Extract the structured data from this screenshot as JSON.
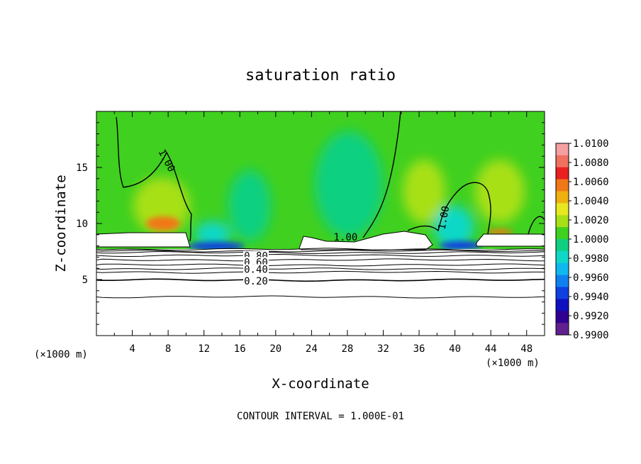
{
  "chart_data": {
    "type": "heatmap",
    "title": "saturation ratio",
    "xlabel": "X-coordinate",
    "ylabel": "Z-coordinate",
    "x_unit": "(×1000 m)",
    "y_unit": "(×1000 m)",
    "footer": "CONTOUR INTERVAL = 1.000E-01",
    "xlim": [
      0,
      50
    ],
    "ylim": [
      0,
      20
    ],
    "x_ticks": [
      4,
      8,
      12,
      16,
      20,
      24,
      28,
      32,
      36,
      40,
      44,
      48
    ],
    "y_ticks": [
      5,
      10,
      15
    ],
    "colorbar": {
      "labels": [
        "1.0100",
        "1.0080",
        "1.0060",
        "1.0040",
        "1.0020",
        "1.0000",
        "0.9980",
        "0.9960",
        "0.9940",
        "0.9920",
        "0.9900"
      ],
      "colors": [
        "#f4a0a0",
        "#f07060",
        "#e82020",
        "#f07818",
        "#f0b010",
        "#e8e820",
        "#a8e018",
        "#40d020",
        "#10d080",
        "#10d8c8",
        "#10b8f0",
        "#1080f0",
        "#1040e0",
        "#1010c0",
        "#300090",
        "#602090"
      ]
    },
    "contour_labels": [
      {
        "text": "1.00",
        "x": 7.8,
        "z": 15.6,
        "rotate": 62
      },
      {
        "text": "1.00",
        "x": 27.8,
        "z": 8.75,
        "rotate": 0
      },
      {
        "text": "1.00",
        "x": 38.8,
        "z": 10.5,
        "rotate": -80
      },
      {
        "text": "0.80",
        "x": 17.8,
        "z": 7.05,
        "rotate": 0
      },
      {
        "text": "0.60",
        "x": 17.8,
        "z": 6.5,
        "rotate": 0
      },
      {
        "text": "0.40",
        "x": 17.8,
        "z": 5.85,
        "rotate": 0
      },
      {
        "text": "0.20",
        "x": 17.8,
        "z": 4.8,
        "rotate": 0
      }
    ],
    "contour_levels_z": [
      3.45,
      4.95,
      5.65,
      5.95,
      6.3,
      6.75,
      7.15,
      7.4,
      7.55,
      7.7
    ]
  }
}
